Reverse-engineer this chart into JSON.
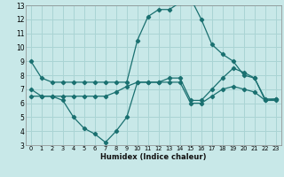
{
  "xlabel": "Humidex (Indice chaleur)",
  "xlim": [
    -0.5,
    23.5
  ],
  "ylim": [
    3,
    13
  ],
  "xticks": [
    0,
    1,
    2,
    3,
    4,
    5,
    6,
    7,
    8,
    9,
    10,
    11,
    12,
    13,
    14,
    15,
    16,
    17,
    18,
    19,
    20,
    21,
    22,
    23
  ],
  "yticks": [
    3,
    4,
    5,
    6,
    7,
    8,
    9,
    10,
    11,
    12,
    13
  ],
  "background_color": "#c8e8e8",
  "grid_color": "#aad4d4",
  "line_color": "#1a7070",
  "line1_x": [
    0,
    1,
    2,
    3,
    4,
    5,
    6,
    7,
    8,
    9,
    10,
    11,
    12,
    13,
    14,
    15,
    16,
    17,
    18,
    19,
    20,
    21,
    22,
    23
  ],
  "line1_y": [
    9.0,
    7.8,
    7.5,
    7.5,
    7.5,
    7.5,
    7.5,
    7.5,
    7.5,
    7.5,
    10.5,
    12.2,
    12.7,
    12.7,
    13.2,
    13.5,
    12.0,
    10.2,
    9.5,
    9.0,
    8.0,
    7.8,
    6.2,
    6.3
  ],
  "line2_x": [
    0,
    1,
    2,
    3,
    4,
    5,
    6,
    7,
    8,
    9,
    10,
    11,
    12,
    13,
    14,
    15,
    16,
    17,
    18,
    19,
    20,
    21,
    22,
    23
  ],
  "line2_y": [
    7.0,
    6.5,
    6.5,
    6.5,
    6.5,
    6.5,
    6.5,
    6.5,
    6.8,
    7.2,
    7.5,
    7.5,
    7.5,
    7.8,
    7.8,
    6.2,
    6.2,
    7.0,
    7.8,
    8.5,
    8.2,
    7.8,
    6.3,
    6.3
  ],
  "line3_x": [
    0,
    1,
    2,
    3,
    4,
    5,
    6,
    7,
    8,
    9,
    10,
    11,
    12,
    13,
    14,
    15,
    16,
    17,
    18,
    19,
    20,
    21,
    22,
    23
  ],
  "line3_y": [
    6.5,
    6.5,
    6.5,
    6.2,
    5.0,
    4.2,
    3.8,
    3.2,
    4.0,
    5.0,
    7.5,
    7.5,
    7.5,
    7.5,
    7.5,
    6.0,
    6.0,
    6.5,
    7.0,
    7.2,
    7.0,
    6.8,
    6.2,
    6.2
  ]
}
